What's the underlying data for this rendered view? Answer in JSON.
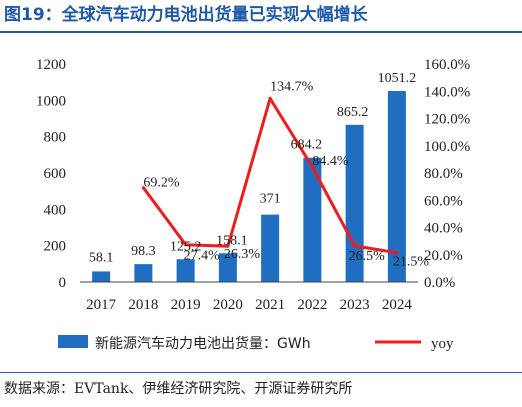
{
  "page": {
    "figure_title": "图19：全球汽车动力电池出货量已实现大幅增长",
    "source": "数据来源：EVTank、伊维经济研究院、开源证券研究所"
  },
  "colors": {
    "bar": "#1f6ec1",
    "line": "#ee1c1c",
    "title": "#1f5aa8"
  },
  "chart_data": {
    "type": "bar",
    "categories": [
      "2017",
      "2018",
      "2019",
      "2020",
      "2021",
      "2022",
      "2023",
      "2024"
    ],
    "series": [
      {
        "name": "新能源汽车动力电池出货量：GWh",
        "type": "bar",
        "axis": "left",
        "values": [
          58.1,
          98.3,
          125.2,
          158.1,
          371,
          684.2,
          865.2,
          1051.2
        ],
        "labels": [
          "58.1",
          "98.3",
          "125.2",
          "158.1",
          "371",
          "684.2",
          "865.2",
          "1051.2"
        ]
      },
      {
        "name": "yoy",
        "type": "line",
        "axis": "right",
        "values": [
          null,
          69.2,
          27.4,
          26.3,
          134.7,
          84.4,
          26.5,
          21.5
        ],
        "labels": [
          null,
          "69.2%",
          "27.4%",
          "26.3%",
          "134.7%",
          "84.4%",
          "26.5%",
          "21.5%"
        ]
      }
    ],
    "y_left": {
      "ylim": [
        0,
        1200
      ],
      "ticks": [
        0,
        200,
        400,
        600,
        800,
        1000,
        1200
      ],
      "tick_labels": [
        "0",
        "200",
        "400",
        "600",
        "800",
        "1000",
        "1200"
      ]
    },
    "y_right": {
      "ylim": [
        0,
        160
      ],
      "ticks": [
        0,
        20,
        40,
        60,
        80,
        100,
        120,
        140,
        160
      ],
      "tick_labels": [
        "0.0%",
        "20.0%",
        "40.0%",
        "60.0%",
        "80.0%",
        "100.0%",
        "120.0%",
        "140.0%",
        "160.0%"
      ]
    },
    "legend": {
      "position": "bottom"
    },
    "grid": false
  }
}
